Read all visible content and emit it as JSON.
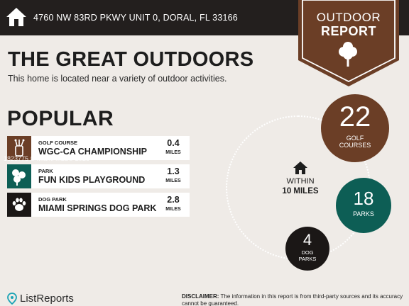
{
  "header": {
    "address": "4760 NW 83RD PKWY UNIT 0, DORAL, FL 33166",
    "home_icon": "home-icon"
  },
  "badge": {
    "line1": "OUTDOOR",
    "line2": "REPORT",
    "color": "#6b3e26",
    "icon": "tree-icon"
  },
  "title": "THE GREAT OUTDOORS",
  "subtitle": "This home is located near a variety of outdoor activities.",
  "popular": {
    "heading": "POPULAR",
    "items": [
      {
        "category": "GOLF COURSE",
        "name": "WGC-CA CHAMPIONSHIP",
        "distance": "0.4",
        "unit": "MILES",
        "icon": "golf-bag-icon",
        "color": "#6b3e26"
      },
      {
        "category": "PARK",
        "name": "FUN KIDS PLAYGROUND",
        "distance": "1.3",
        "unit": "MILES",
        "icon": "trees-icon",
        "color": "#0d5e55"
      },
      {
        "category": "DOG PARK",
        "name": "MIAMI SPRINGS DOG PARK",
        "distance": "2.8",
        "unit": "MILES",
        "icon": "paw-icon",
        "color": "#1b1716"
      }
    ]
  },
  "summary": {
    "within_label": "WITHIN",
    "within_value": "10 MILES",
    "center_icon": "home-icon",
    "golf": {
      "count": "22",
      "label1": "GOLF",
      "label2": "COURSES",
      "color": "#6b3e26"
    },
    "parks": {
      "count": "18",
      "label1": "PARKS",
      "color": "#0d5e55"
    },
    "dog": {
      "count": "4",
      "label1": "DOG",
      "label2": "PARKS",
      "color": "#1b1716"
    }
  },
  "footer": {
    "logo_text": "ListReports",
    "disclaimer_label": "DISCLAIMER:",
    "disclaimer_text": " The information in this report is from third-party sources and its accuracy cannot be guaranteed."
  },
  "watermark": "1823775 © Miami MLS® 2026"
}
